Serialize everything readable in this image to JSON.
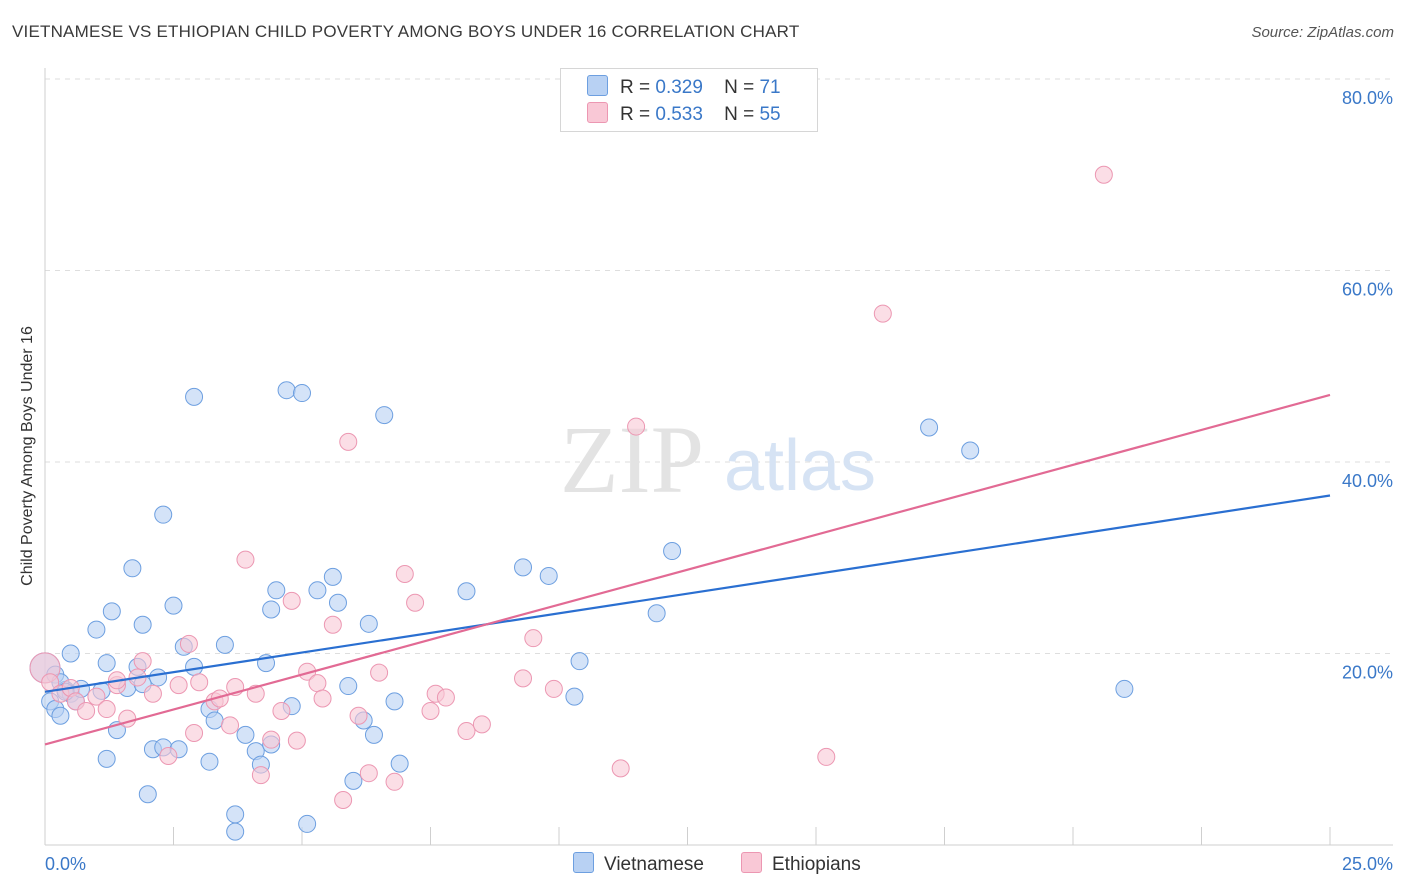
{
  "title": "VIETNAMESE VS ETHIOPIAN CHILD POVERTY AMONG BOYS UNDER 16 CORRELATION CHART",
  "source": "Source: ZipAtlas.com",
  "watermark": {
    "zip": "ZIP",
    "atlas": "atlas"
  },
  "legend": {
    "rows": [
      {
        "r_label": "R =",
        "r_value": "0.329",
        "n_label": "N =",
        "n_value": "71"
      },
      {
        "r_label": "R =",
        "r_value": "0.533",
        "n_label": "N =",
        "n_value": "55"
      }
    ],
    "bottom": [
      "Vietnamese",
      "Ethiopians"
    ]
  },
  "chart_data": {
    "type": "scatter",
    "title": "VIETNAMESE VS ETHIOPIAN CHILD POVERTY AMONG BOYS UNDER 16 CORRELATION CHART",
    "xlabel": "",
    "ylabel": "Child Poverty Among Boys Under 16",
    "xlim": [
      0,
      25
    ],
    "ylim": [
      0,
      80
    ],
    "x_tick_labels": [
      "0.0%",
      "25.0%"
    ],
    "y_tick_labels": [
      "20.0%",
      "40.0%",
      "60.0%",
      "80.0%"
    ],
    "y_ticks": [
      20,
      40,
      60,
      80
    ],
    "grid": true,
    "legend_position": "top-center",
    "colors": {
      "vietnamese_fill": "#b8d1f3",
      "vietnamese_stroke": "#6d9fe0",
      "vietnamese_line": "#2a6fd1",
      "ethiopians_fill": "#f9c8d6",
      "ethiopians_stroke": "#ec97b2",
      "ethiopians_line": "#e26a94",
      "tick_label": "#3a78c8"
    },
    "series": [
      {
        "name": "Vietnamese",
        "trend": [
          [
            0,
            16.0
          ],
          [
            25,
            36.5
          ]
        ],
        "points": [
          [
            0.0,
            18.5
          ],
          [
            0.1,
            15.0
          ],
          [
            0.2,
            17.8
          ],
          [
            0.2,
            14.2
          ],
          [
            0.3,
            13.5
          ],
          [
            0.4,
            16.2
          ],
          [
            0.5,
            20.0
          ],
          [
            0.5,
            15.8
          ],
          [
            0.6,
            15.0
          ],
          [
            0.7,
            16.3
          ],
          [
            1.0,
            22.5
          ],
          [
            1.1,
            16.1
          ],
          [
            1.2,
            19.0
          ],
          [
            1.3,
            24.4
          ],
          [
            1.4,
            12.0
          ],
          [
            1.6,
            16.4
          ],
          [
            1.7,
            28.9
          ],
          [
            1.8,
            18.6
          ],
          [
            1.9,
            23.0
          ],
          [
            2.0,
            5.3
          ],
          [
            2.1,
            10.0
          ],
          [
            2.2,
            17.5
          ],
          [
            2.3,
            10.2
          ],
          [
            2.3,
            34.5
          ],
          [
            2.5,
            25.0
          ],
          [
            2.6,
            10.0
          ],
          [
            2.7,
            20.7
          ],
          [
            2.9,
            46.8
          ],
          [
            2.9,
            18.6
          ],
          [
            3.2,
            8.7
          ],
          [
            3.2,
            14.2
          ],
          [
            3.3,
            13.0
          ],
          [
            3.5,
            20.9
          ],
          [
            3.7,
            3.2
          ],
          [
            3.7,
            1.4
          ],
          [
            3.9,
            11.5
          ],
          [
            4.1,
            9.8
          ],
          [
            4.2,
            8.4
          ],
          [
            4.3,
            19.0
          ],
          [
            4.4,
            24.6
          ],
          [
            4.4,
            10.5
          ],
          [
            4.5,
            26.6
          ],
          [
            4.7,
            47.5
          ],
          [
            4.8,
            14.5
          ],
          [
            5.0,
            47.2
          ],
          [
            5.1,
            2.2
          ],
          [
            5.3,
            26.6
          ],
          [
            5.6,
            28.0
          ],
          [
            5.7,
            25.3
          ],
          [
            5.9,
            16.6
          ],
          [
            6.0,
            6.7
          ],
          [
            6.2,
            13.0
          ],
          [
            6.3,
            23.1
          ],
          [
            6.4,
            11.5
          ],
          [
            6.6,
            44.9
          ],
          [
            6.8,
            15.0
          ],
          [
            6.9,
            8.5
          ],
          [
            1.2,
            9.0
          ],
          [
            0.3,
            17.0
          ],
          [
            8.2,
            26.5
          ],
          [
            9.3,
            29.0
          ],
          [
            9.8,
            28.1
          ],
          [
            10.3,
            15.5
          ],
          [
            10.4,
            19.2
          ],
          [
            11.9,
            24.2
          ],
          [
            12.2,
            30.7
          ],
          [
            17.2,
            43.6
          ],
          [
            18.0,
            41.2
          ],
          [
            21.0,
            16.3
          ],
          [
            0.4,
            16.0
          ],
          [
            1.9,
            16.8
          ]
        ]
      },
      {
        "name": "Ethiopians",
        "trend": [
          [
            0,
            10.5
          ],
          [
            25,
            47.0
          ]
        ],
        "points": [
          [
            0.0,
            18.5
          ],
          [
            0.1,
            17.0
          ],
          [
            0.3,
            15.8
          ],
          [
            0.5,
            16.4
          ],
          [
            0.6,
            15.0
          ],
          [
            0.8,
            14.0
          ],
          [
            1.0,
            15.5
          ],
          [
            1.2,
            14.2
          ],
          [
            1.4,
            16.7
          ],
          [
            1.6,
            13.2
          ],
          [
            1.8,
            17.5
          ],
          [
            1.9,
            19.2
          ],
          [
            2.1,
            15.8
          ],
          [
            2.4,
            9.3
          ],
          [
            2.6,
            16.7
          ],
          [
            2.8,
            21.0
          ],
          [
            2.9,
            11.7
          ],
          [
            3.0,
            17.0
          ],
          [
            3.3,
            15.0
          ],
          [
            3.4,
            15.3
          ],
          [
            3.6,
            12.5
          ],
          [
            3.7,
            16.5
          ],
          [
            3.9,
            29.8
          ],
          [
            4.1,
            15.8
          ],
          [
            4.2,
            7.3
          ],
          [
            4.4,
            11.0
          ],
          [
            4.6,
            14.0
          ],
          [
            4.8,
            25.5
          ],
          [
            4.9,
            10.9
          ],
          [
            5.1,
            18.1
          ],
          [
            5.3,
            16.9
          ],
          [
            5.4,
            15.3
          ],
          [
            5.6,
            23.0
          ],
          [
            5.8,
            4.7
          ],
          [
            5.9,
            42.1
          ],
          [
            6.1,
            13.5
          ],
          [
            6.3,
            7.5
          ],
          [
            6.5,
            18.0
          ],
          [
            6.8,
            6.6
          ],
          [
            7.0,
            28.3
          ],
          [
            7.2,
            25.3
          ],
          [
            7.5,
            14.0
          ],
          [
            7.6,
            15.8
          ],
          [
            7.8,
            15.4
          ],
          [
            8.2,
            11.9
          ],
          [
            8.5,
            12.6
          ],
          [
            9.3,
            17.4
          ],
          [
            9.5,
            21.6
          ],
          [
            9.9,
            16.3
          ],
          [
            11.2,
            8.0
          ],
          [
            11.5,
            43.7
          ],
          [
            15.2,
            9.2
          ],
          [
            16.3,
            55.5
          ],
          [
            20.6,
            70.0
          ],
          [
            1.4,
            17.2
          ]
        ]
      }
    ]
  }
}
